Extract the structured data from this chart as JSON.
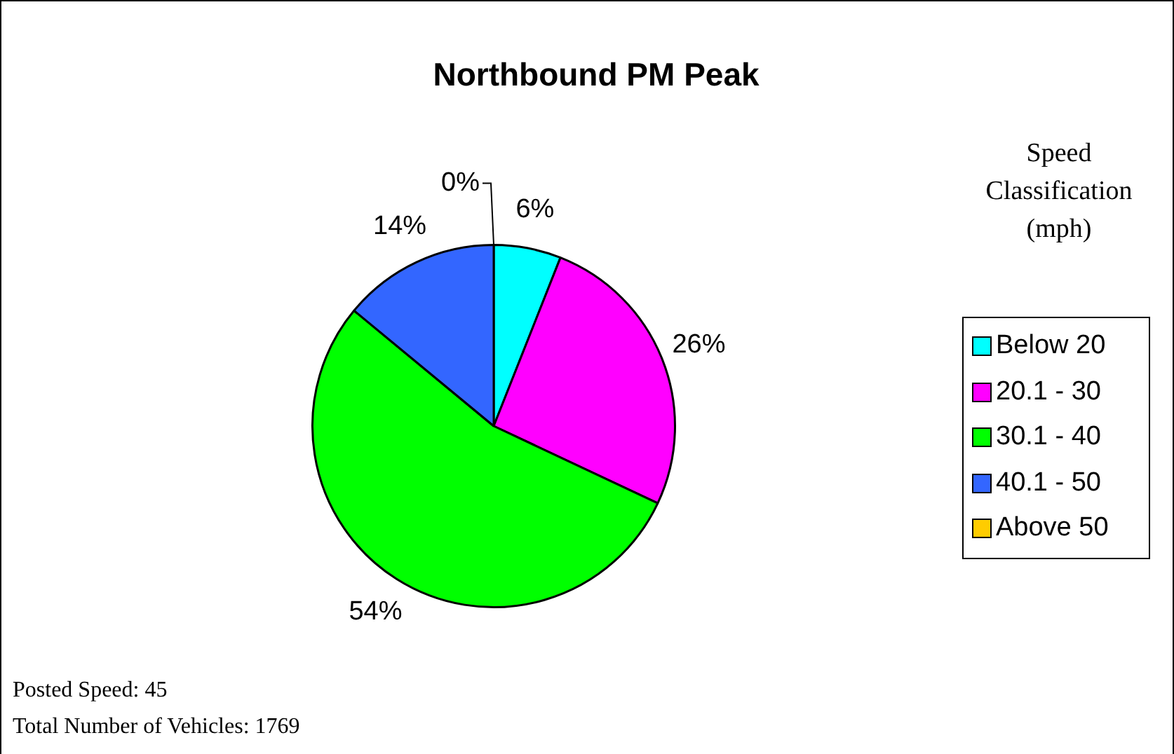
{
  "chart_data": {
    "type": "pie",
    "title": "Northbound PM Peak",
    "legend_title": "Speed Classification (mph)",
    "categories": [
      "Below 20",
      "20.1 - 30",
      "30.1 - 40",
      "40.1 - 50",
      "Above 50"
    ],
    "values": [
      6,
      26,
      54,
      14,
      0
    ],
    "value_labels": [
      "6%",
      "26%",
      "54%",
      "14%",
      "0%"
    ],
    "colors": [
      "#00ffff",
      "#ff00ff",
      "#00ff00",
      "#3366ff",
      "#ffcc00"
    ],
    "legend": "right",
    "annotations": [
      "Posted Speed: 45",
      "Total Number of Vehicles: 1769"
    ]
  }
}
